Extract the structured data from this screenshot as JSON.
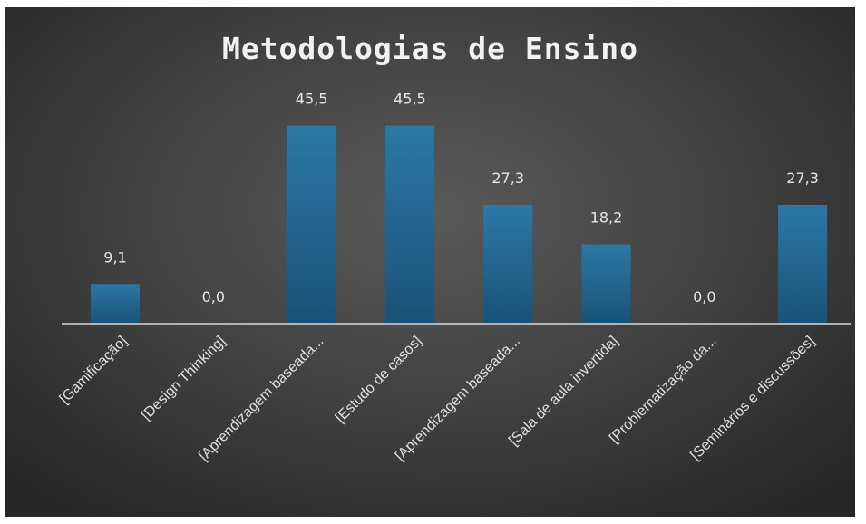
{
  "chart_data": {
    "type": "bar",
    "title": "Metodologias de Ensino",
    "xlabel": "",
    "ylabel": "",
    "categories": [
      "[Gamificação]",
      "[Design Thinking]",
      "[Aprendizagem baseada...",
      "[Estudo de casos]",
      "[Aprendizagem baseada...",
      "[Sala de aula invertida]",
      "[Problematização da...",
      "[Seminários e discussões]"
    ],
    "values": [
      9.1,
      0.0,
      45.5,
      45.5,
      27.3,
      18.2,
      0.0,
      27.3
    ],
    "data_labels": [
      "9,1",
      "0,0",
      "45,5",
      "45,5",
      "27,3",
      "18,2",
      "0,0",
      "27,3"
    ],
    "ylim": [
      0,
      50
    ],
    "grid": false,
    "legend": "none",
    "colors": {
      "bar_top": "#2b79a6",
      "bar_bottom": "#1a5277",
      "axis": "#d9d9d9",
      "background_center": "#5a5a5a",
      "background_edge": "#262626",
      "text": "#e6e6e6"
    }
  }
}
